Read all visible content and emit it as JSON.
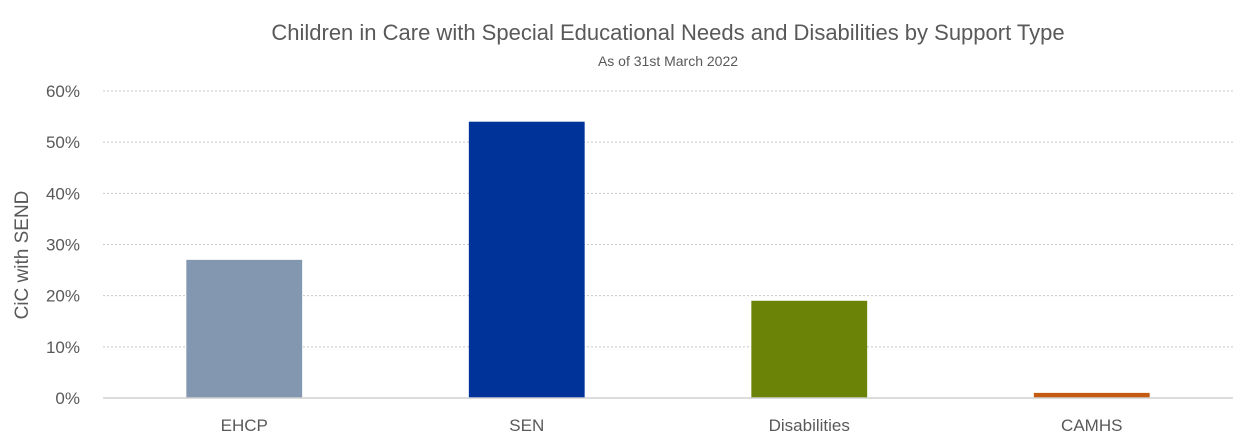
{
  "chart_data": {
    "type": "bar",
    "title": "Children in Care with Special Educational Needs and Disabilities by Support Type",
    "subtitle": "As of 31st March 2022",
    "xlabel": "",
    "ylabel": "CiC with SEND",
    "categories": [
      "EHCP",
      "SEN",
      "Disabilities",
      "CAMHS"
    ],
    "values": [
      27,
      54,
      19,
      1
    ],
    "value_unit": "%",
    "ylim": [
      0,
      60
    ],
    "yticks": [
      "0%",
      "10%",
      "20%",
      "30%",
      "40%",
      "50%",
      "60%"
    ],
    "grid": true,
    "legend": "none",
    "colors": [
      "#8497b0",
      "#003399",
      "#6b8407",
      "#c55a11"
    ]
  }
}
